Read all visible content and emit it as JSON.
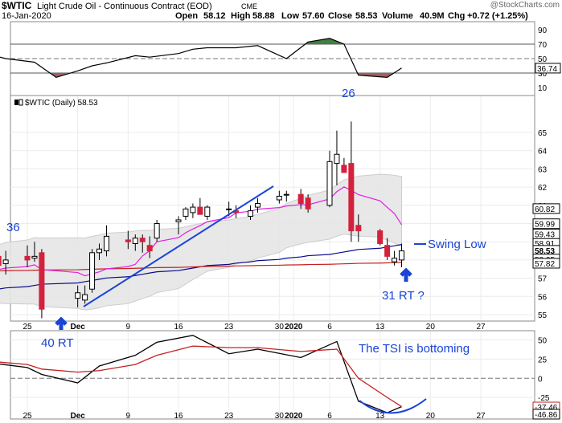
{
  "header": {
    "symbol": "$WTIC",
    "name": "Light Crude Oil - Continuous Contract (EOD)",
    "exchange": "CME",
    "watermark": "@StockCharts.com",
    "date": "16-Jan-2020",
    "open_label": "Open",
    "open": "58.12",
    "high_label": "High",
    "high": "58.88",
    "low_label": "Low",
    "low": "57.60",
    "close_label": "Close",
    "close": "58.53",
    "volume_label": "Volume",
    "volume": "40.9M",
    "chg_label": "Chg",
    "chg": "+0.72 (+1.25%)"
  },
  "price_label": "$WTIC (Daily) 58.53",
  "annotations": {
    "a36": "36",
    "a26": "26",
    "a40": "40 RT",
    "a31": "31 RT ?",
    "swing": "Swing Low",
    "tsi": "The TSI is bottoming"
  },
  "colors": {
    "up": "#ffffff",
    "down": "#d4213c",
    "outline": "#000000",
    "ma_short": "#e020e0",
    "ma_long": "#0b0b8c",
    "ma_red": "#c62020",
    "annot_blue": "#1a44d6",
    "band": "#e6e6e6",
    "rsi_green": "#3f7f3f",
    "rsi_red": "#a06060"
  },
  "chart_data": [
    {
      "type": "line",
      "panel": "oscillator-top",
      "ylim": [
        0,
        100
      ],
      "yticks": [
        "90",
        "70",
        "50",
        "30",
        "10"
      ],
      "marker_value": "36.74",
      "x": [
        "2019-11-20",
        "2019-11-22",
        "2019-11-26",
        "2019-11-29",
        "2019-12-02",
        "2019-12-04",
        "2019-12-06",
        "2019-12-10",
        "2019-12-12",
        "2019-12-16",
        "2019-12-18",
        "2019-12-20",
        "2019-12-24",
        "2019-12-27",
        "2019-12-31",
        "2020-01-03",
        "2020-01-06",
        "2020-01-08",
        "2020-01-10",
        "2020-01-14",
        "2020-01-16"
      ],
      "values": [
        55,
        50,
        45,
        24,
        33,
        40,
        44,
        54,
        52,
        57,
        63,
        65,
        65,
        68,
        50,
        73,
        78,
        70,
        27,
        24,
        37
      ]
    },
    {
      "type": "candlestick",
      "panel": "price",
      "ylim": [
        54.6,
        66.2
      ],
      "yticks": [
        55,
        56,
        57,
        58,
        59,
        60,
        61,
        62,
        63,
        64,
        65
      ],
      "price_tags": [
        60.82,
        59.99,
        59.43,
        58.91,
        58.53,
        58.05,
        57.82
      ],
      "candles": [
        {
          "d": "2019-11-21",
          "o": 58.2,
          "h": 58.9,
          "l": 57.5,
          "c": 57.7
        },
        {
          "d": "2019-11-22",
          "o": 57.8,
          "h": 58.5,
          "l": 57.2,
          "c": 58.0
        },
        {
          "d": "2019-11-25",
          "o": 58.2,
          "h": 58.8,
          "l": 57.6,
          "c": 58.0
        },
        {
          "d": "2019-11-26",
          "o": 58.1,
          "h": 59.0,
          "l": 57.9,
          "c": 58.2
        },
        {
          "d": "2019-11-27",
          "o": 58.4,
          "h": 58.6,
          "l": 54.8,
          "c": 55.3
        },
        {
          "d": "2019-12-02",
          "o": 55.9,
          "h": 56.6,
          "l": 55.4,
          "c": 56.2
        },
        {
          "d": "2019-12-03",
          "o": 55.8,
          "h": 56.6,
          "l": 55.6,
          "c": 56.1
        },
        {
          "d": "2019-12-04",
          "o": 56.4,
          "h": 58.6,
          "l": 56.2,
          "c": 58.4
        },
        {
          "d": "2019-12-05",
          "o": 58.4,
          "h": 58.9,
          "l": 58.0,
          "c": 58.6
        },
        {
          "d": "2019-12-06",
          "o": 58.5,
          "h": 59.9,
          "l": 58.2,
          "c": 59.3
        },
        {
          "d": "2019-12-09",
          "o": 59.1,
          "h": 59.6,
          "l": 58.6,
          "c": 59.0
        },
        {
          "d": "2019-12-10",
          "o": 58.9,
          "h": 59.4,
          "l": 58.5,
          "c": 59.2
        },
        {
          "d": "2019-12-11",
          "o": 59.2,
          "h": 59.4,
          "l": 58.4,
          "c": 59.0
        },
        {
          "d": "2019-12-12",
          "o": 58.8,
          "h": 59.3,
          "l": 58.1,
          "c": 58.5
        },
        {
          "d": "2019-12-13",
          "o": 59.2,
          "h": 60.2,
          "l": 59.0,
          "c": 60.0
        },
        {
          "d": "2019-12-16",
          "o": 60.1,
          "h": 60.4,
          "l": 59.4,
          "c": 60.2
        },
        {
          "d": "2019-12-17",
          "o": 60.4,
          "h": 60.9,
          "l": 60.2,
          "c": 60.8
        },
        {
          "d": "2019-12-18",
          "o": 60.6,
          "h": 61.1,
          "l": 60.3,
          "c": 60.9
        },
        {
          "d": "2019-12-19",
          "o": 60.9,
          "h": 61.4,
          "l": 60.6,
          "c": 60.5
        },
        {
          "d": "2019-12-20",
          "o": 60.4,
          "h": 61.0,
          "l": 60.2,
          "c": 60.9
        },
        {
          "d": "2019-12-23",
          "o": 60.8,
          "h": 61.2,
          "l": 60.4,
          "c": 60.8
        },
        {
          "d": "2019-12-24",
          "o": 60.7,
          "h": 61.0,
          "l": 60.3,
          "c": 60.6
        },
        {
          "d": "2019-12-26",
          "o": 60.4,
          "h": 61.0,
          "l": 60.2,
          "c": 60.7
        },
        {
          "d": "2019-12-27",
          "o": 60.9,
          "h": 61.4,
          "l": 60.6,
          "c": 61.1
        },
        {
          "d": "2019-12-30",
          "o": 61.3,
          "h": 61.8,
          "l": 61.1,
          "c": 61.5
        },
        {
          "d": "2019-12-31",
          "o": 61.6,
          "h": 61.8,
          "l": 61.2,
          "c": 61.6
        },
        {
          "d": "2020-01-02",
          "o": 61.6,
          "h": 61.9,
          "l": 60.8,
          "c": 61.1
        },
        {
          "d": "2020-01-03",
          "o": 61.4,
          "h": 61.6,
          "l": 60.6,
          "c": 60.8
        },
        {
          "d": "2020-01-06",
          "o": 61.0,
          "h": 64.0,
          "l": 60.9,
          "c": 63.4
        },
        {
          "d": "2020-01-07",
          "o": 63.3,
          "h": 65.1,
          "l": 62.1,
          "c": 63.8
        },
        {
          "d": "2020-01-08",
          "o": 63.2,
          "h": 63.6,
          "l": 62.8,
          "c": 62.8
        },
        {
          "d": "2020-01-09",
          "o": 63.3,
          "h": 65.6,
          "l": 59.0,
          "c": 59.6
        },
        {
          "d": "2020-01-10",
          "o": 59.9,
          "h": 60.5,
          "l": 59.0,
          "c": 59.6
        },
        {
          "d": "2020-01-13",
          "o": 59.6,
          "h": 59.7,
          "l": 58.8,
          "c": 58.9
        },
        {
          "d": "2020-01-14",
          "o": 58.8,
          "h": 59.2,
          "l": 58.0,
          "c": 58.2
        },
        {
          "d": "2020-01-15",
          "o": 57.9,
          "h": 58.5,
          "l": 57.7,
          "c": 58.1
        },
        {
          "d": "2020-01-16",
          "o": 58.0,
          "h": 58.9,
          "l": 57.6,
          "c": 58.5
        }
      ],
      "x_ticks": [
        "25",
        "Dec",
        "9",
        "16",
        "23",
        "30",
        "2020",
        "6",
        "13",
        "20",
        "27"
      ]
    },
    {
      "type": "line",
      "panel": "tsi",
      "ylim": [
        -50,
        60
      ],
      "yticks": [
        "50",
        "25",
        "0",
        "-25"
      ],
      "marker_values": [
        "-37.46",
        "-46.86"
      ],
      "x": [
        "2019-11-20",
        "2019-11-25",
        "2019-11-27",
        "2019-12-02",
        "2019-12-05",
        "2019-12-10",
        "2019-12-13",
        "2019-12-18",
        "2019-12-23",
        "2019-12-27",
        "2020-01-02",
        "2020-01-07",
        "2020-01-10",
        "2020-01-14",
        "2020-01-16"
      ],
      "series": [
        {
          "values": [
            20,
            14,
            5,
            -6,
            16,
            30,
            47,
            56,
            32,
            38,
            27,
            48,
            -30,
            -45,
            -37
          ]
        },
        {
          "values": [
            22,
            18,
            12,
            8,
            10,
            18,
            30,
            42,
            40,
            40,
            35,
            38,
            0,
            -25,
            -37
          ]
        }
      ]
    }
  ]
}
